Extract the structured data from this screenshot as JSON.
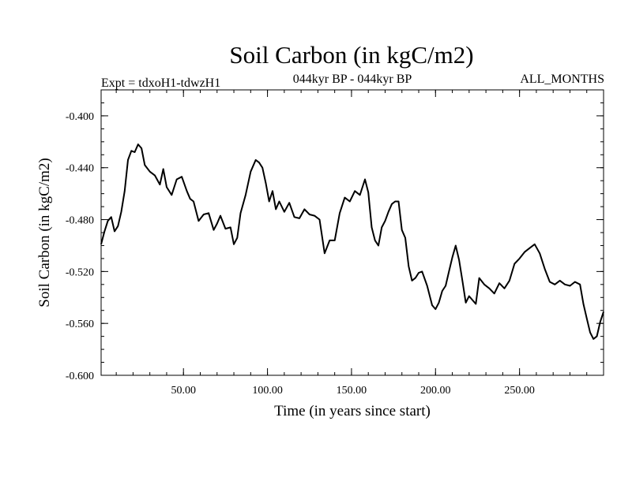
{
  "chart_data": {
    "type": "line",
    "title": "Soil Carbon (in kgC/m2)",
    "subtitle_left": "Expt = tdxoH1-tdwzH1",
    "subtitle_center": "044kyr BP - 044kyr BP",
    "subtitle_right": "ALL_MONTHS",
    "xlabel": "Time (in years since start)",
    "ylabel": "Soil Carbon (in kgC/m2)",
    "xlim": [
      1,
      300
    ],
    "ylim": [
      -0.6,
      -0.38
    ],
    "x_ticks": [
      50,
      100,
      150,
      200,
      250
    ],
    "x_tick_labels": [
      "50.00",
      "100.00",
      "150.00",
      "200.00",
      "250.00"
    ],
    "y_ticks": [
      -0.6,
      -0.56,
      -0.52,
      -0.48,
      -0.44,
      -0.4
    ],
    "y_tick_labels": [
      "-0.600",
      "-0.560",
      "-0.520",
      "-0.480",
      "-0.440",
      "-0.400"
    ],
    "grid": false,
    "series": [
      {
        "name": "Soil Carbon",
        "color": "#000000",
        "x": [
          1,
          3,
          5,
          7,
          9,
          11,
          13,
          15,
          17,
          19,
          21,
          23,
          25,
          27,
          30,
          33,
          36,
          38,
          40,
          43,
          46,
          49,
          52,
          54,
          56,
          59,
          62,
          65,
          68,
          70,
          72,
          75,
          78,
          80,
          82,
          84,
          87,
          90,
          93,
          95,
          97,
          99,
          101,
          103,
          105,
          107,
          110,
          113,
          116,
          119,
          122,
          125,
          128,
          131,
          134,
          137,
          140,
          143,
          146,
          149,
          152,
          155,
          158,
          160,
          162,
          164,
          166,
          168,
          170,
          172,
          174,
          176,
          178,
          180,
          182,
          184,
          186,
          188,
          190,
          192,
          195,
          198,
          200,
          202,
          204,
          206,
          208,
          210,
          212,
          214,
          216,
          218,
          220,
          222,
          224,
          226,
          229,
          232,
          235,
          238,
          241,
          244,
          247,
          250,
          253,
          256,
          259,
          262,
          265,
          268,
          271,
          274,
          277,
          280,
          283,
          286,
          288,
          290,
          292,
          294,
          296,
          298,
          300
        ],
        "y": [
          -0.499,
          -0.489,
          -0.481,
          -0.478,
          -0.489,
          -0.485,
          -0.474,
          -0.458,
          -0.434,
          -0.427,
          -0.428,
          -0.422,
          -0.425,
          -0.438,
          -0.443,
          -0.446,
          -0.453,
          -0.441,
          -0.455,
          -0.461,
          -0.449,
          -0.447,
          -0.458,
          -0.464,
          -0.466,
          -0.481,
          -0.476,
          -0.475,
          -0.488,
          -0.483,
          -0.477,
          -0.487,
          -0.486,
          -0.499,
          -0.494,
          -0.475,
          -0.461,
          -0.443,
          -0.434,
          -0.436,
          -0.44,
          -0.452,
          -0.466,
          -0.458,
          -0.472,
          -0.466,
          -0.474,
          -0.467,
          -0.478,
          -0.479,
          -0.472,
          -0.476,
          -0.477,
          -0.48,
          -0.506,
          -0.496,
          -0.496,
          -0.475,
          -0.463,
          -0.466,
          -0.458,
          -0.461,
          -0.449,
          -0.459,
          -0.486,
          -0.496,
          -0.5,
          -0.486,
          -0.481,
          -0.474,
          -0.468,
          -0.466,
          -0.466,
          -0.488,
          -0.494,
          -0.516,
          -0.527,
          -0.525,
          -0.521,
          -0.52,
          -0.531,
          -0.546,
          -0.549,
          -0.544,
          -0.535,
          -0.531,
          -0.52,
          -0.509,
          -0.5,
          -0.511,
          -0.527,
          -0.544,
          -0.539,
          -0.542,
          -0.545,
          -0.525,
          -0.53,
          -0.533,
          -0.537,
          -0.529,
          -0.533,
          -0.527,
          -0.514,
          -0.51,
          -0.505,
          -0.502,
          -0.499,
          -0.506,
          -0.518,
          -0.528,
          -0.53,
          -0.527,
          -0.53,
          -0.531,
          -0.528,
          -0.53,
          -0.545,
          -0.556,
          -0.567,
          -0.572,
          -0.57,
          -0.559,
          -0.551
        ]
      }
    ]
  }
}
